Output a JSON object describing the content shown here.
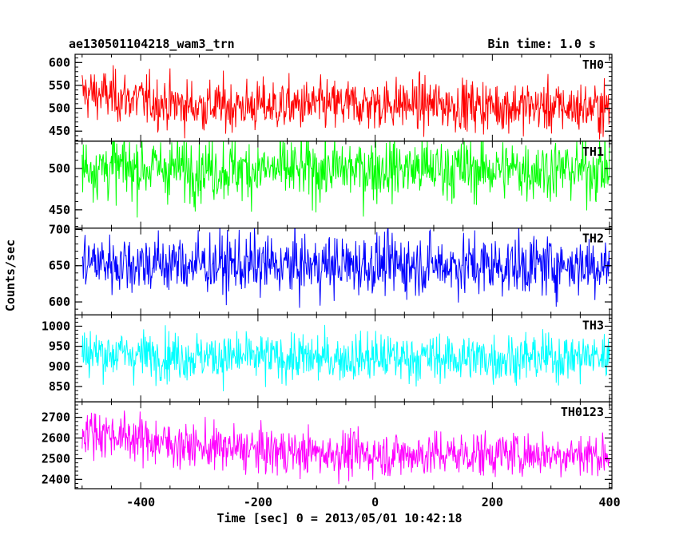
{
  "header": {
    "obs_title": "ae130501104218_wam3_trn",
    "bin_time": "Bin time: 1.0 s"
  },
  "chart_data": {
    "type": "line",
    "title": "ae130501104218_wam3_trn",
    "subtitle": "Bin time: 1.0 s",
    "xlabel": "Time [sec] 0 = 2013/05/01 10:42:18",
    "ylabel": "Counts/sec",
    "xlim": [
      -512,
      404
    ],
    "x_range_data": [
      -500,
      400
    ],
    "xticks": [
      -400,
      -200,
      0,
      200,
      400
    ],
    "grid": false,
    "legend": "none",
    "panels": [
      {
        "name": "TH0",
        "color": "#ff0000",
        "ylim": [
          428,
          618
        ],
        "yticks": [
          450,
          500,
          550,
          600
        ],
        "mean": 508,
        "noise": 28,
        "trend": [
          535,
          505,
          505,
          510,
          505,
          500
        ],
        "bin_sec": 1.0
      },
      {
        "name": "TH1",
        "color": "#00ff00",
        "ylim": [
          428,
          533
        ],
        "yticks": [
          450,
          500
        ],
        "mean": 500,
        "noise": 19,
        "trend": [
          502,
          500,
          498,
          500,
          499,
          499
        ],
        "bin_sec": 1.0
      },
      {
        "name": "TH2",
        "color": "#0000ff",
        "ylim": [
          582,
          702
        ],
        "yticks": [
          600,
          650,
          700
        ],
        "mean": 652,
        "noise": 21,
        "trend": [
          655,
          652,
          650,
          652,
          650,
          652
        ],
        "bin_sec": 1.0
      },
      {
        "name": "TH3",
        "color": "#00ffff",
        "ylim": [
          812,
          1028
        ],
        "yticks": [
          850,
          900,
          950,
          1000
        ],
        "mean": 925,
        "noise": 30,
        "trend": [
          935,
          925,
          920,
          922,
          920,
          925
        ],
        "bin_sec": 1.0
      },
      {
        "name": "TH0123",
        "color": "#ff00ff",
        "ylim": [
          2355,
          2775
        ],
        "yticks": [
          2400,
          2500,
          2600,
          2700
        ],
        "mean": 2540,
        "noise": 55,
        "trend": [
          2640,
          2560,
          2530,
          2520,
          2525,
          2520
        ],
        "bin_sec": 1.0
      }
    ]
  }
}
